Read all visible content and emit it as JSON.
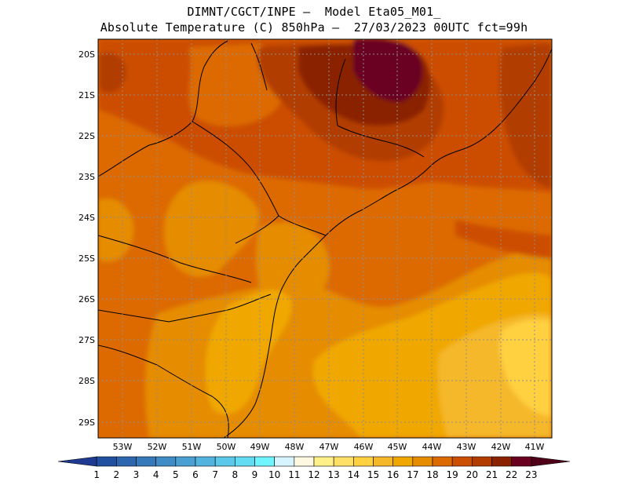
{
  "header": {
    "title_line1": "DIMNT/CGCT/INPE –  Model Eta05_M01_",
    "title_line2": "Absolute Temperature (C) 850hPa –  27/03/2023 00UTC fct=99h"
  },
  "map": {
    "lat_ticks": [
      "20S",
      "21S",
      "22S",
      "23S",
      "24S",
      "25S",
      "26S",
      "27S",
      "28S",
      "29S"
    ],
    "lon_ticks": [
      "53W",
      "52W",
      "51W",
      "50W",
      "49W",
      "48W",
      "47W",
      "46W",
      "45W",
      "44W",
      "43W",
      "42W",
      "41W"
    ],
    "grid": true
  },
  "colorbar": {
    "labels": [
      "1",
      "2",
      "3",
      "4",
      "5",
      "6",
      "7",
      "8",
      "9",
      "10",
      "11",
      "12",
      "13",
      "14",
      "15",
      "16",
      "17",
      "18",
      "19",
      "20",
      "21",
      "22",
      "23"
    ],
    "colors": [
      "#1f3a93",
      "#2250a0",
      "#2b66ae",
      "#3579bb",
      "#3f8cc6",
      "#4aa0d2",
      "#52b4de",
      "#5ac8e8",
      "#62dcf2",
      "#6ff5ff",
      "#d6f4ff",
      "#fff8e0",
      "#fff08a",
      "#ffe066",
      "#ffd040",
      "#f5b82a",
      "#f0a800",
      "#e58c00",
      "#dc6a00",
      "#cc4e00",
      "#b23c00",
      "#8a2200",
      "#6a0020",
      "#4d0018"
    ]
  }
}
